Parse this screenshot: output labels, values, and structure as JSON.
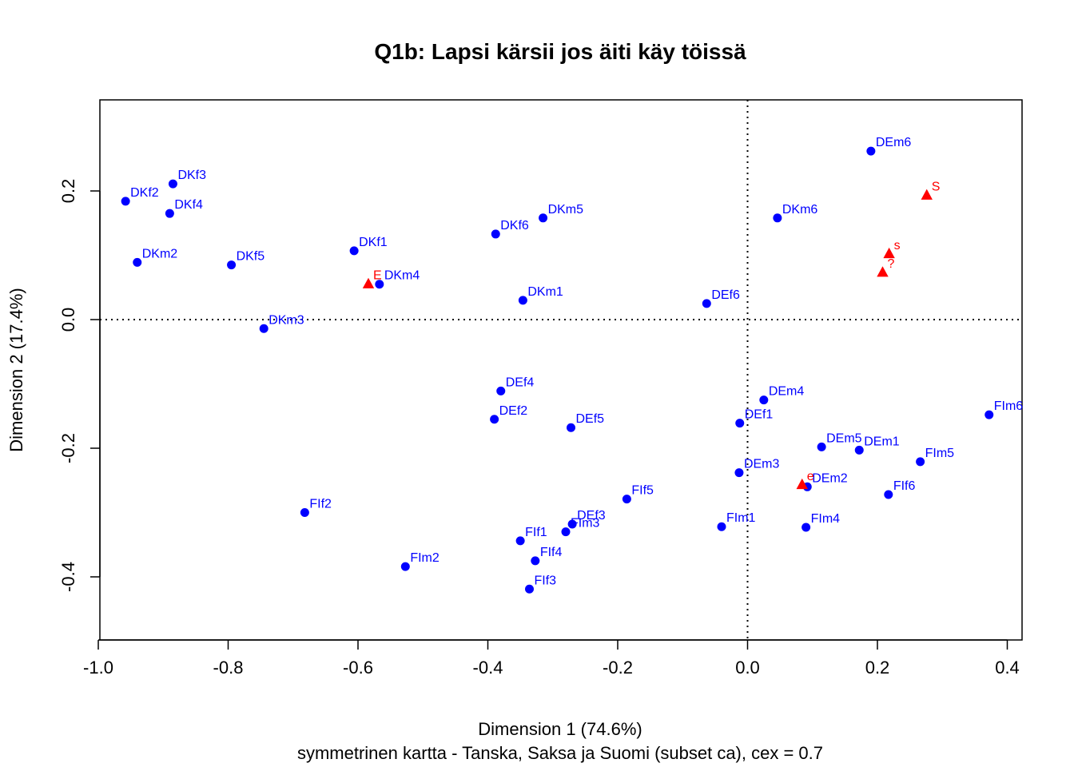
{
  "chart_data": {
    "type": "scatter",
    "title": "Q1b: Lapsi kärsii jos äiti käy töissä",
    "xlabel": "Dimension 1 (74.6%)",
    "ylabel": "Dimension 2 (17.4%)",
    "subtitle": "symmetrinen kartta - Tanska, Saksa ja Suomi (subset ca), cex = 0.7",
    "xlim": [
      -1.0,
      0.42
    ],
    "ylim": [
      -0.5,
      0.34
    ],
    "xticks": [
      "-1.0",
      "-0.8",
      "-0.6",
      "-0.4",
      "-0.2",
      "0.0",
      "0.2",
      "0.4"
    ],
    "yticks": [
      "-0.4",
      "-0.2",
      "0.0",
      "0.2"
    ],
    "reference_lines": {
      "x": 0,
      "y": 0,
      "style": "dotted"
    },
    "colors": {
      "rows": "#0000ff",
      "columns": "#ff0000"
    },
    "series": [
      {
        "marker": "circle",
        "color": "#0000ff",
        "points": [
          {
            "label": "DEm6",
            "x": 0.19,
            "y": 0.262
          },
          {
            "label": "DKf3",
            "x": -0.885,
            "y": 0.211
          },
          {
            "label": "DKf2",
            "x": -0.958,
            "y": 0.184
          },
          {
            "label": "DKf4",
            "x": -0.89,
            "y": 0.165
          },
          {
            "label": "DKm5",
            "x": -0.315,
            "y": 0.158
          },
          {
            "label": "DKm6",
            "x": 0.046,
            "y": 0.158
          },
          {
            "label": "DKf6",
            "x": -0.388,
            "y": 0.133
          },
          {
            "label": "DKf1",
            "x": -0.606,
            "y": 0.107
          },
          {
            "label": "DKm2",
            "x": -0.94,
            "y": 0.089
          },
          {
            "label": "DKf5",
            "x": -0.795,
            "y": 0.085
          },
          {
            "label": "DKm4",
            "x": -0.567,
            "y": 0.055
          },
          {
            "label": "DKm1",
            "x": -0.346,
            "y": 0.03
          },
          {
            "label": "DEf6",
            "x": -0.063,
            "y": 0.025
          },
          {
            "label": "DKm3",
            "x": -0.745,
            "y": -0.014
          },
          {
            "label": "DEf4",
            "x": -0.38,
            "y": -0.111
          },
          {
            "label": "DEm4",
            "x": 0.025,
            "y": -0.125
          },
          {
            "label": "FIm6",
            "x": 0.372,
            "y": -0.148
          },
          {
            "label": "DEf2",
            "x": -0.39,
            "y": -0.155
          },
          {
            "label": "DEf1",
            "x": -0.012,
            "y": -0.161
          },
          {
            "label": "DEf5",
            "x": -0.272,
            "y": -0.168
          },
          {
            "label": "DEm5",
            "x": 0.114,
            "y": -0.198
          },
          {
            "label": "DEm1",
            "x": 0.172,
            "y": -0.203
          },
          {
            "label": "FIm5",
            "x": 0.266,
            "y": -0.221
          },
          {
            "label": "DEm3",
            "x": -0.013,
            "y": -0.238
          },
          {
            "label": "DEm2",
            "x": 0.092,
            "y": -0.26
          },
          {
            "label": "FIf6",
            "x": 0.217,
            "y": -0.272
          },
          {
            "label": "FIf5",
            "x": -0.186,
            "y": -0.279
          },
          {
            "label": "FIf2",
            "x": -0.682,
            "y": -0.3
          },
          {
            "label": "DEf3",
            "x": -0.27,
            "y": -0.318
          },
          {
            "label": "FIm1",
            "x": -0.04,
            "y": -0.322
          },
          {
            "label": "FIm4",
            "x": 0.09,
            "y": -0.323
          },
          {
            "label": "FIm3",
            "x": -0.28,
            "y": -0.33
          },
          {
            "label": "FIf1",
            "x": -0.35,
            "y": -0.344
          },
          {
            "label": "FIf4",
            "x": -0.327,
            "y": -0.375
          },
          {
            "label": "FIm2",
            "x": -0.527,
            "y": -0.384
          },
          {
            "label": "FIf3",
            "x": -0.336,
            "y": -0.419
          }
        ]
      },
      {
        "marker": "triangle",
        "color": "#ff0000",
        "points": [
          {
            "label": "S",
            "x": 0.276,
            "y": 0.193
          },
          {
            "label": "s",
            "x": 0.218,
            "y": 0.102
          },
          {
            "label": "?",
            "x": 0.208,
            "y": 0.073
          },
          {
            "label": "E",
            "x": -0.584,
            "y": 0.055
          },
          {
            "label": "e",
            "x": 0.084,
            "y": -0.257
          }
        ]
      }
    ]
  }
}
